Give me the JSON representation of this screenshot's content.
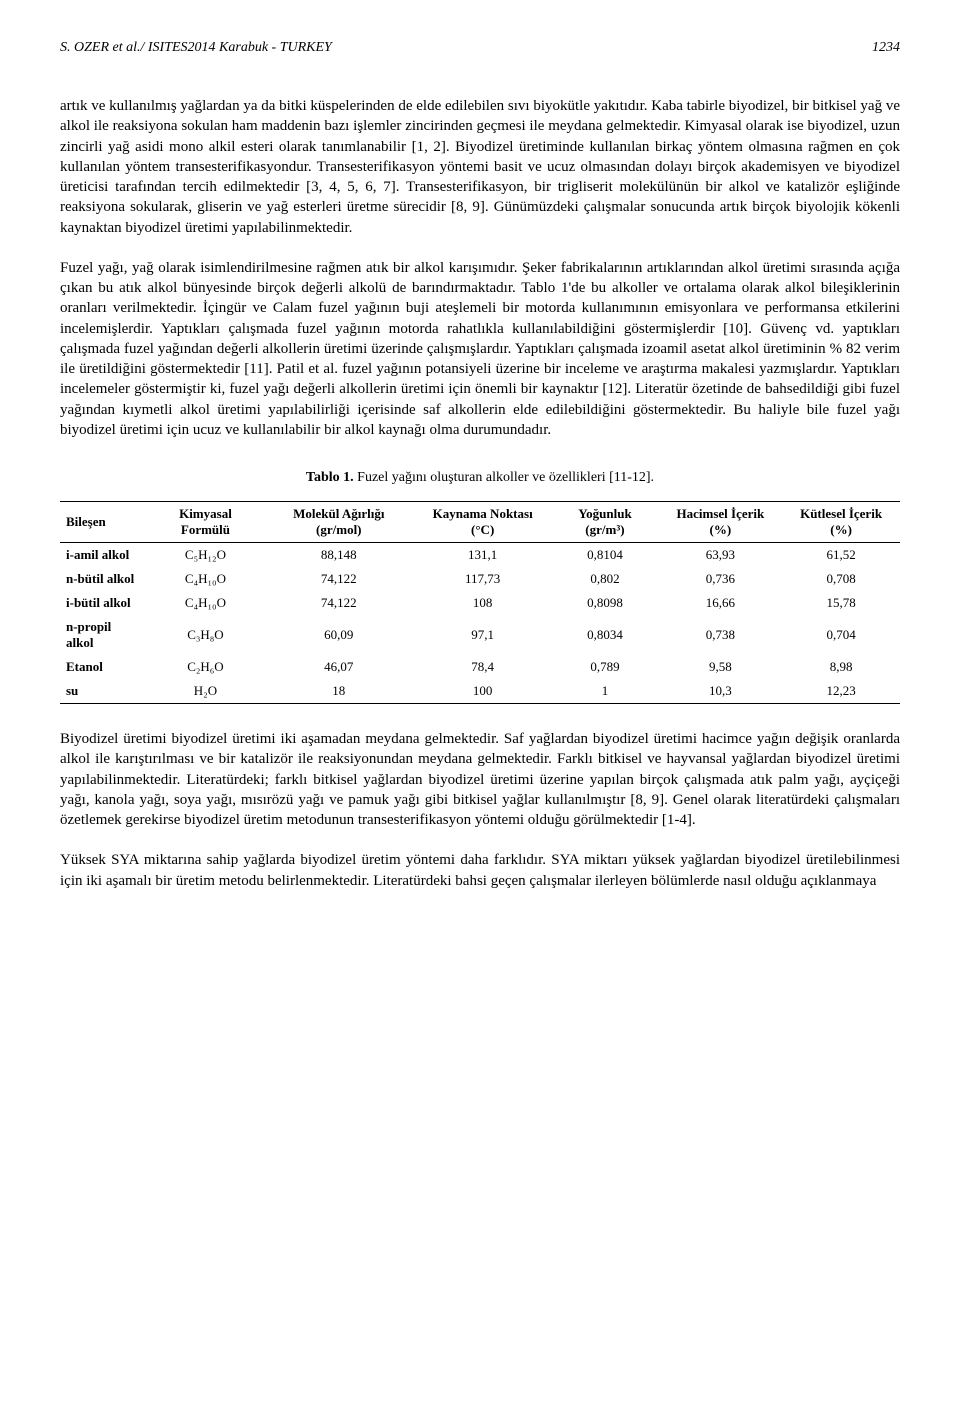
{
  "header": {
    "left": "S. OZER et al./ ISITES2014 Karabuk - TURKEY",
    "page": "1234"
  },
  "paragraphs": {
    "p1": "artık ve kullanılmış yağlardan ya da bitki küspelerinden de elde edilebilen sıvı biyokütle yakıtıdır. Kaba tabirle biyodizel, bir bitkisel yağ ve alkol ile reaksiyona sokulan ham maddenin bazı işlemler zincirinden geçmesi ile meydana gelmektedir. Kimyasal olarak ise biyodizel, uzun zincirli yağ asidi mono alkil esteri olarak tanımlanabilir [1, 2]. Biyodizel üretiminde kullanılan birkaç yöntem olmasına rağmen en çok kullanılan yöntem transesterifikasyondur. Transesterifikasyon yöntemi basit ve ucuz olmasından dolayı birçok akademisyen ve biyodizel üreticisi tarafından tercih edilmektedir [3, 4, 5, 6, 7]. Transesterifikasyon, bir trigliserit molekülünün bir alkol ve katalizör eşliğinde reaksiyona sokularak, gliserin ve yağ esterleri üretme sürecidir [8, 9]. Günümüzdeki çalışmalar sonucunda artık birçok biyolojik kökenli kaynaktan biyodizel üretimi yapılabilinmektedir.",
    "p2": "Fuzel yağı, yağ olarak isimlendirilmesine rağmen atık bir alkol karışımıdır. Şeker fabrikalarının artıklarından alkol üretimi sırasında açığa çıkan bu atık alkol bünyesinde birçok değerli alkolü de barındırmaktadır. Tablo 1'de bu alkoller ve ortalama olarak alkol bileşiklerinin oranları verilmektedir. İçingür ve Calam fuzel yağının buji ateşlemeli bir motorda kullanımının emisyonlara ve performansa etkilerini incelemişlerdir. Yaptıkları çalışmada fuzel yağının motorda rahatlıkla kullanılabildiğini göstermişlerdir [10]. Güvenç vd. yaptıkları çalışmada fuzel yağından değerli alkollerin üretimi üzerinde çalışmışlardır. Yaptıkları çalışmada izoamil asetat alkol üretiminin % 82 verim ile üretildiğini göstermektedir [11]. Patil et al. fuzel yağının potansiyeli üzerine bir inceleme ve araştırma makalesi yazmışlardır. Yaptıkları incelemeler göstermiştir ki, fuzel yağı değerli alkollerin üretimi için önemli bir kaynaktır [12]. Literatür özetinde de bahsedildiği gibi fuzel yağından kıymetli alkol üretimi yapılabilirliği içerisinde saf alkollerin elde edilebildiğini göstermektedir. Bu haliyle bile fuzel yağı biyodizel üretimi için ucuz ve kullanılabilir bir alkol kaynağı olma durumundadır.",
    "p3": "Biyodizel üretimi biyodizel üretimi iki aşamadan meydana gelmektedir. Saf yağlardan biyodizel üretimi hacimce yağın değişik oranlarda alkol ile karıştırılması ve bir katalizör ile reaksiyonundan meydana gelmektedir. Farklı bitkisel ve hayvansal yağlardan biyodizel üretimi yapılabilinmektedir. Literatürdeki; farklı bitkisel yağlardan biyodizel üretimi üzerine yapılan birçok çalışmada atık palm yağı, ayçiçeği yağı, kanola yağı, soya yağı, mısırözü yağı ve pamuk yağı gibi bitkisel yağlar kullanılmıştır [8, 9]. Genel olarak literatürdeki çalışmaları özetlemek gerekirse biyodizel üretim metodunun transesterifikasyon yöntemi olduğu görülmektedir [1-4].",
    "p4": "Yüksek SYA miktarına sahip yağlarda biyodizel üretim yöntemi daha farklıdır. SYA miktarı yüksek yağlardan biyodizel üretilebilinmesi için iki aşamalı bir üretim metodu belirlenmektedir. Literatürdeki bahsi geçen çalışmalar ilerleyen bölümlerde nasıl olduğu açıklanmaya"
  },
  "table": {
    "caption_bold": "Tablo 1.",
    "caption_rest": " Fuzel yağını oluşturan alkoller ve özellikleri [11-12].",
    "columns": [
      "Bileşen",
      "Kimyasal Formülü",
      "Molekül Ağırlığı (gr/mol)",
      "Kaynama Noktası (°C)",
      "Yoğunluk (gr/m³)",
      "Hacimsel İçerik (%)",
      "Kütlesel İçerik (%)"
    ],
    "rows": [
      [
        "i-amil alkol",
        "C₅H₁₂O",
        "88,148",
        "131,1",
        "0,8104",
        "63,93",
        "61,52"
      ],
      [
        "n-bütil alkol",
        "C₄H₁₀O",
        "74,122",
        "117,73",
        "0,802",
        "0,736",
        "0,708"
      ],
      [
        "i-bütil alkol",
        "C₄H₁₀O",
        "74,122",
        "108",
        "0,8098",
        "16,66",
        "15,78"
      ],
      [
        "n-propil alkol",
        "C₃H₈O",
        "60,09",
        "97,1",
        "0,8034",
        "0,738",
        "0,704"
      ],
      [
        "Etanol",
        "C₂H₆O",
        "46,07",
        "78,4",
        "0,789",
        "9,58",
        "8,98"
      ],
      [
        "su",
        "H₂O",
        "18",
        "100",
        "1",
        "10,3",
        "12,23"
      ]
    ]
  }
}
